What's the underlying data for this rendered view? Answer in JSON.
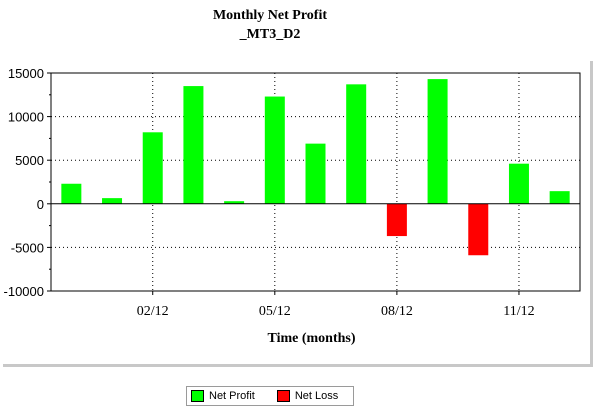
{
  "header": {
    "title_line1": "Monthly Net Profit",
    "title_line2": "_MT3_D2"
  },
  "legend": {
    "profit_label": "Net Profit",
    "loss_label": "Net Loss"
  },
  "colors": {
    "profit": "#00ff00",
    "loss": "#ff0000"
  },
  "chart_data": {
    "type": "bar",
    "xlabel": "Time (months)",
    "ylabel": "",
    "ylim": [
      -10000,
      15000
    ],
    "yticks": [
      15000,
      10000,
      5000,
      0,
      -5000,
      -10000
    ],
    "grid": true,
    "x_ticks": [
      {
        "label": "02/12",
        "index": 2
      },
      {
        "label": "05/12",
        "index": 5
      },
      {
        "label": "08/12",
        "index": 8
      },
      {
        "label": "11/12",
        "index": 11
      }
    ],
    "values": [
      2300,
      650,
      8200,
      13500,
      300,
      12300,
      6900,
      13700,
      -3700,
      14300,
      -5900,
      4600,
      1450
    ],
    "series": [
      {
        "name": "Net Profit",
        "color": "#00ff00",
        "rule": "value >= 0"
      },
      {
        "name": "Net Loss",
        "color": "#ff0000",
        "rule": "value < 0"
      }
    ],
    "legend_position": "bottom"
  }
}
